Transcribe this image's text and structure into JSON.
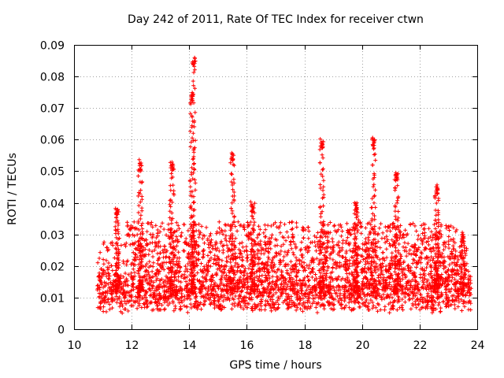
{
  "chart_data": {
    "type": "scatter",
    "title": "Day 242 of 2011, Rate Of TEC Index for receiver ctwn",
    "xlabel": "GPS time / hours",
    "ylabel": "ROTI / TECUs",
    "xlim": [
      10,
      24
    ],
    "ylim": [
      0,
      0.09
    ],
    "xticks": [
      10,
      12,
      14,
      16,
      18,
      20,
      22,
      24
    ],
    "xtick_labels": [
      "10",
      "12",
      "14",
      "16",
      "18",
      "20",
      "22",
      "24"
    ],
    "yticks": [
      0,
      0.01,
      0.02,
      0.03,
      0.04,
      0.05,
      0.06,
      0.07,
      0.08,
      0.09
    ],
    "ytick_labels": [
      "0",
      "0.01",
      "0.02",
      "0.03",
      "0.04",
      "0.05",
      "0.06",
      "0.07",
      "0.08",
      "0.09"
    ],
    "grid": true,
    "marker": "+",
    "color": "#ff0000",
    "x_range_observed": [
      10.8,
      23.8
    ],
    "peaks": [
      {
        "x": 11.5,
        "y": 0.038
      },
      {
        "x": 12.3,
        "y": 0.053
      },
      {
        "x": 13.4,
        "y": 0.053
      },
      {
        "x": 14.15,
        "y": 0.086
      },
      {
        "x": 14.1,
        "y": 0.075
      },
      {
        "x": 15.5,
        "y": 0.056
      },
      {
        "x": 16.2,
        "y": 0.04
      },
      {
        "x": 18.6,
        "y": 0.06
      },
      {
        "x": 19.8,
        "y": 0.04
      },
      {
        "x": 20.4,
        "y": 0.061
      },
      {
        "x": 21.2,
        "y": 0.05
      },
      {
        "x": 22.6,
        "y": 0.045
      },
      {
        "x": 23.5,
        "y": 0.03
      }
    ],
    "typical_band": [
      0.005,
      0.02
    ],
    "seed": 242
  }
}
